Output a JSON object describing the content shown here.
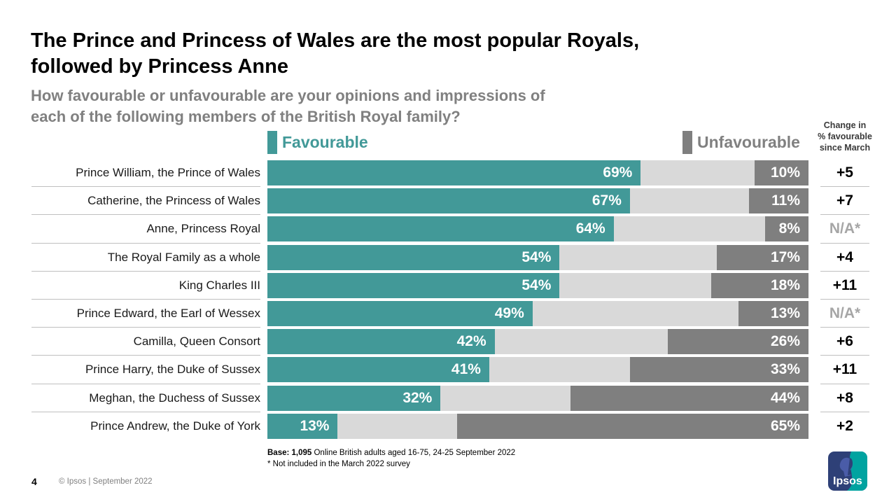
{
  "slide": {
    "title": "The Prince and Princess of Wales are the most popular Royals,\nfollowed by Princess Anne",
    "subtitle": "How favourable or unfavourable are your opinions and impressions of\neach of the following members of the British Royal family?",
    "page_number": "4",
    "copyright": "© Ipsos | September 2022",
    "base_bold": "Base: 1,095",
    "base_rest": " Online British adults aged 16-75, 24-25 September 2022",
    "footnote": "* Not included in the March 2022 survey",
    "logo_text": "Ipsos"
  },
  "legend": {
    "favourable_label": "Favourable",
    "unfavourable_label": "Unfavourable",
    "change_header": "Change in\n% favourable\nsince March"
  },
  "colors": {
    "favourable": "#429998",
    "unfavourable": "#7F7F7F",
    "remainder": "#D9D9D9",
    "divider": "#BFBFBF",
    "muted_text": "#A6A6A6",
    "subtitle_text": "#808080",
    "logo_navy": "#2E4077",
    "logo_teal": "#00A3A0"
  },
  "chart_data": {
    "type": "bar",
    "orientation": "horizontal-stacked",
    "title": "How favourable or unfavourable are your opinions and impressions of each of the following members of the British Royal family?",
    "xlim": [
      0,
      100
    ],
    "grid": false,
    "legend_position": "top",
    "categories": [
      "Prince William, the Prince of Wales",
      "Catherine, the Princess of Wales",
      "Anne, Princess Royal",
      "The Royal Family as a whole",
      "King Charles III",
      "Prince Edward, the Earl of Wessex",
      "Camilla, Queen Consort",
      "Prince Harry, the Duke of Sussex",
      "Meghan, the Duchess of Sussex",
      "Prince Andrew, the Duke of York"
    ],
    "series": [
      {
        "name": "Favourable",
        "color": "#429998",
        "values": [
          69,
          67,
          64,
          54,
          54,
          49,
          42,
          41,
          32,
          13
        ]
      },
      {
        "name": "Unfavourable",
        "color": "#7F7F7F",
        "values": [
          10,
          11,
          8,
          17,
          18,
          13,
          26,
          33,
          44,
          65
        ]
      }
    ],
    "value_suffix": "%",
    "change_since_march": [
      "+5",
      "+7",
      "N/A*",
      "+4",
      "+11",
      "N/A*",
      "+6",
      "+11",
      "+8",
      "+2"
    ]
  }
}
